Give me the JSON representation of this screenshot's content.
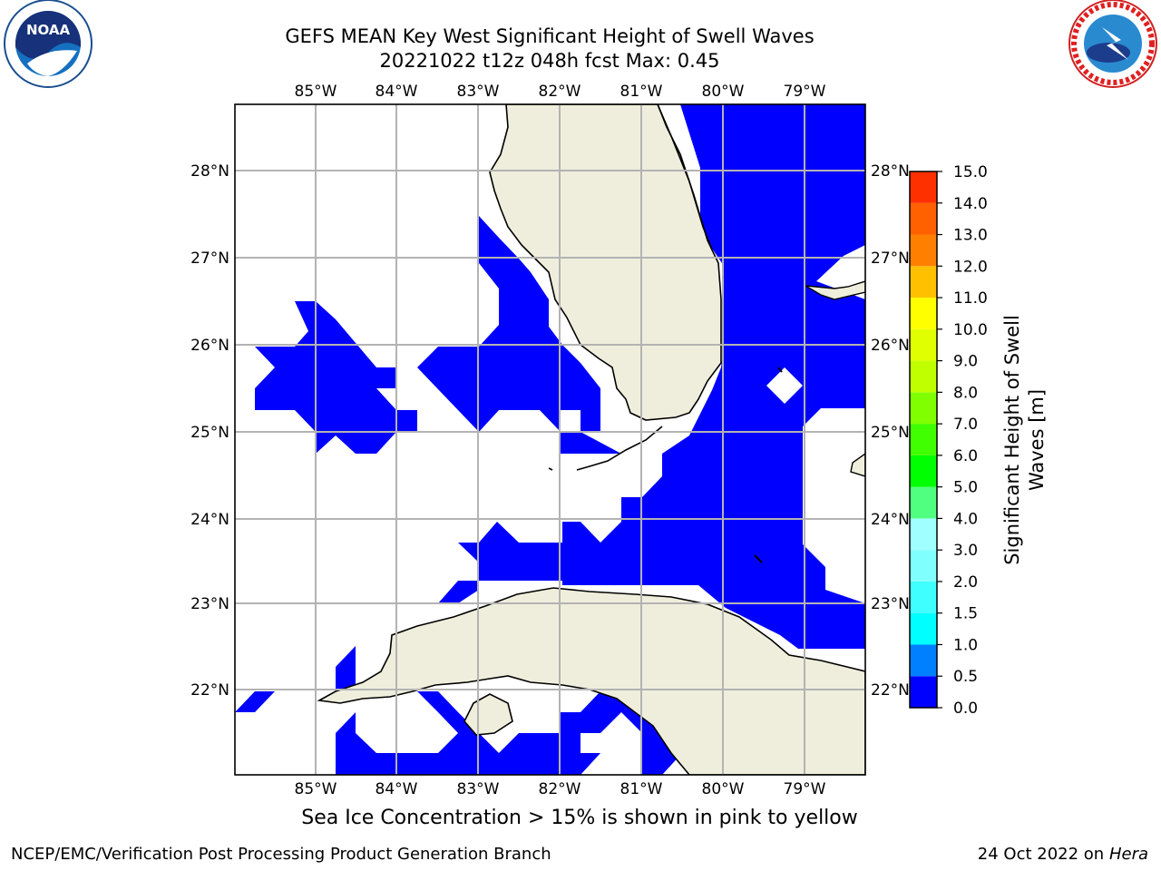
{
  "title_line1": "GEFS MEAN Key West Significant Height of Swell Waves",
  "title_line2": "20221022 t12z 048h fcst   Max: 0.45",
  "lon_labels": [
    "85°W",
    "84°W",
    "83°W",
    "82°W",
    "81°W",
    "80°W",
    "79°W"
  ],
  "lat_labels": [
    "28°N",
    "27°N",
    "26°N",
    "25°N",
    "24°N",
    "23°N",
    "22°N"
  ],
  "colorbar": {
    "label_line1": "Significant Height of Swell",
    "label_line2": "Waves [m]",
    "ticks": [
      "0.0",
      "0.5",
      "1.0",
      "1.5",
      "2.0",
      "3.0",
      "4.0",
      "5.0",
      "6.0",
      "7.0",
      "8.0",
      "9.0",
      "10.0",
      "11.0",
      "12.0",
      "13.0",
      "14.0",
      "15.0"
    ],
    "colors": [
      "#0000ff",
      "#0080ff",
      "#00ffff",
      "#40ffff",
      "#80ffff",
      "#a0ffff",
      "#50ff80",
      "#00ff00",
      "#40ff00",
      "#80ff00",
      "#c0ff00",
      "#e0ff00",
      "#ffff00",
      "#ffc000",
      "#ff8000",
      "#ff6000",
      "#ff3000",
      "#ff0000"
    ]
  },
  "land_color": "#efeedc",
  "water_color": "#0000ff",
  "note": "Sea Ice Concentration > 15% is shown in pink to yellow",
  "footer_left": "NCEP/EMC/Verification Post Processing Product Generation Branch",
  "footer_date": "24 Oct 2022 on ",
  "footer_machine": "Hera"
}
